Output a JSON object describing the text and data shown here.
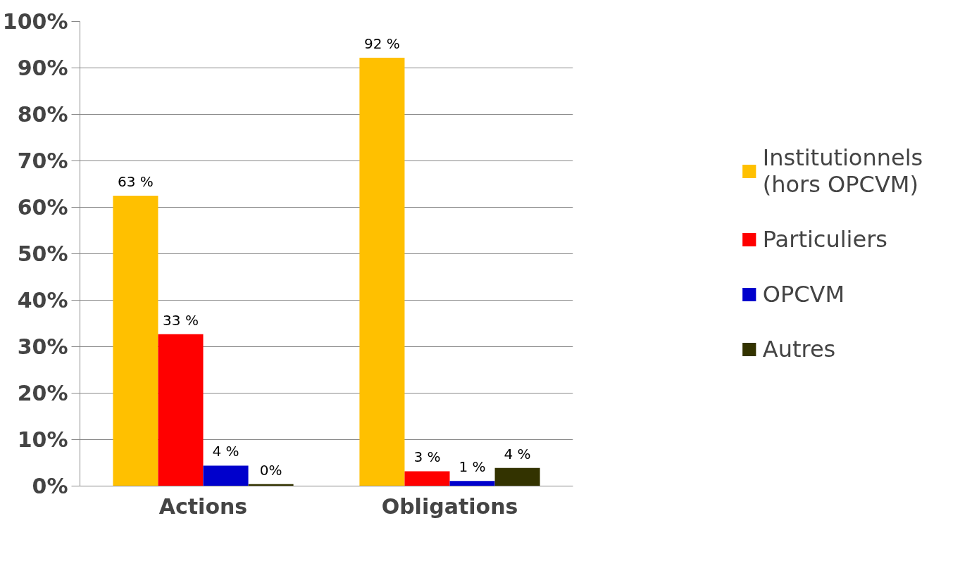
{
  "chart_data": {
    "type": "bar",
    "categories": [
      "Actions",
      "Obligations"
    ],
    "series": [
      {
        "name": "Institutionnels (hors OPCVM)",
        "color": "#ffc000",
        "values": [
          62.5,
          92.2
        ],
        "value_labels": [
          "63 %",
          "92 %"
        ]
      },
      {
        "name": "Particuliers",
        "color": "#ff0000",
        "values": [
          32.7,
          3.2
        ],
        "value_labels": [
          "33 %",
          "3 %"
        ]
      },
      {
        "name": "OPCVM",
        "color": "#0000cc",
        "values": [
          4.4,
          1.1
        ],
        "value_labels": [
          "4 %",
          "1 %"
        ]
      },
      {
        "name": "Autres",
        "color": "#333300",
        "values": [
          0.4,
          3.9
        ],
        "value_labels": [
          "0%",
          "4 %"
        ]
      }
    ],
    "ylim": [
      0,
      100
    ],
    "yticks": [
      {
        "value": 0,
        "label": "0%"
      },
      {
        "value": 10,
        "label": "10%"
      },
      {
        "value": 20,
        "label": "20%"
      },
      {
        "value": 30,
        "label": "30%"
      },
      {
        "value": 40,
        "label": "40%"
      },
      {
        "value": 50,
        "label": "50%"
      },
      {
        "value": 60,
        "label": "60%"
      },
      {
        "value": 70,
        "label": "70%"
      },
      {
        "value": 80,
        "label": "80%"
      },
      {
        "value": 90,
        "label": "90%"
      },
      {
        "value": 100,
        "label": "100%"
      }
    ],
    "grid": "y",
    "legend": "right"
  }
}
